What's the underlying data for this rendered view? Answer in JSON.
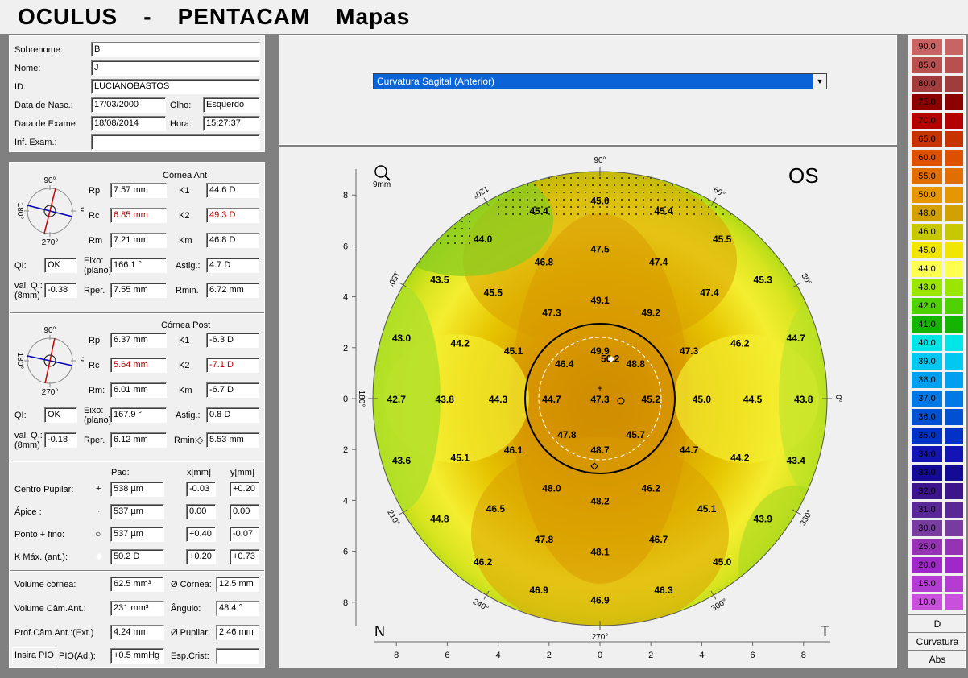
{
  "title": {
    "part1": "OCULUS",
    "dash": "-",
    "part2": "PENTACAM",
    "part3": "Mapas"
  },
  "patient": {
    "sobrenome_label": "Sobrenome:",
    "sobrenome_value": "B",
    "nome_label": "Nome:",
    "nome_value": "J",
    "id_label": "ID:",
    "id_value": "LUCIANOBASTOS",
    "nasc_label": "Data de Nasc.:",
    "nasc_value": "17/03/2000",
    "olho_label": "Olho:",
    "olho_value": "Esquerdo",
    "exame_label": "Data de Exame:",
    "exame_value": "18/08/2014",
    "hora_label": "Hora:",
    "hora_value": "15:27:37",
    "inf_label": "Inf. Exam.:",
    "inf_value": ""
  },
  "cornea_ant": {
    "title": "Córnea Ant",
    "dial": {
      "top": "90°",
      "left": "180°",
      "right": "0°",
      "bottom": "270°"
    },
    "rp_label": "Rp",
    "rp": "7.57 mm",
    "k1_label": "K1",
    "k1": "44.6 D",
    "rc_label": "Rc",
    "rc": "6.85 mm",
    "k2_label": "K2",
    "k2": "49.3 D",
    "rm_label": "Rm",
    "rm": "7.21 mm",
    "km_label": "Km",
    "km": "46.8 D",
    "qi_label": "QI:",
    "qi": "OK",
    "eixo_label": "Eixo:",
    "eixo_sub": "(plano)",
    "eixo": "166.1 °",
    "astig_label": "Astig.:",
    "astig": "4.7 D",
    "valq_label": "val. Q.:",
    "valq_sub": "(8mm)",
    "valq": "-0.38",
    "rper_label": "Rper.",
    "rper": "7.55 mm",
    "rmin_label": "Rmin.",
    "rmin": "6.72 mm"
  },
  "cornea_post": {
    "title": "Córnea Post",
    "dial": {
      "top": "90°",
      "left": "180°",
      "right": "0°",
      "bottom": "270°"
    },
    "rp_label": "Rp",
    "rp": "6.37 mm",
    "k1_label": "K1",
    "k1": "-6.3 D",
    "rc_label": "Rc",
    "rc": "5.64 mm",
    "k2_label": "K2",
    "k2": "-7.1 D",
    "rm_label": "Rm:",
    "rm": "6.01 mm",
    "km_label": "Km",
    "km": "-6.7 D",
    "qi_label": "QI:",
    "qi": "OK",
    "eixo_label": "Eixo:",
    "eixo_sub": "(plano)",
    "eixo": "167.9 °",
    "astig_label": "Astig.:",
    "astig": "0.8 D",
    "valq_label": "val. Q.:",
    "valq_sub": "(8mm)",
    "valq": "-0.18",
    "rper_label": "Rper.",
    "rper": "6.12 mm",
    "rmin_label": "Rmin:",
    "rmin_symbol": "◇",
    "rmin": "5.53 mm"
  },
  "pachy": {
    "col_paq": "Paq:",
    "col_x": "x[mm]",
    "col_y": "y[mm]",
    "rows": [
      {
        "label": "Centro Pupilar:",
        "symbol": "+",
        "paq": "538 µm",
        "x": "-0.03",
        "y": "+0.20"
      },
      {
        "label": "Ápice :",
        "symbol": "·",
        "paq": "537 µm",
        "x": "0.00",
        "y": "0.00"
      },
      {
        "label": "Ponto + fino:",
        "symbol": "○",
        "paq": "537 µm",
        "x": "+0.40",
        "y": "-0.07"
      },
      {
        "label": "K Máx. (ant.):",
        "symbol": "◆",
        "paq": "50.2 D",
        "x": "+0.20",
        "y": "+0.73"
      }
    ]
  },
  "volumes": {
    "vol_cornea_label": "Volume córnea:",
    "vol_cornea": "62.5 mm³",
    "diam_cornea_label": "Ø Córnea:",
    "diam_cornea": "12.5 mm",
    "vol_cam_label": "Volume Câm.Ant.:",
    "vol_cam": "231 mm³",
    "angulo_label": "Ângulo:",
    "angulo": "48.4 °",
    "prof_label": "Prof.Câm.Ant.:(Ext.)",
    "prof": "4.24 mm",
    "pupilar_label": "Ø Pupilar:",
    "pupilar": "2.46 mm",
    "insira_pio": "Insira PIO",
    "pio_label": "PIO(Ad.):",
    "pio": "+0.5 mmHg",
    "esp_label": "Esp.Crist:",
    "esp": ""
  },
  "map": {
    "selector": "Curvatura Sagital (Anterior)",
    "eye": "OS",
    "zoom_label": "9mm",
    "left_label": "N",
    "right_label": "T",
    "axis_ticks": [
      "8",
      "6",
      "4",
      "2",
      "0",
      "2",
      "4",
      "6",
      "8"
    ],
    "angles": [
      "90°",
      "60°",
      "30°",
      "0°",
      "330°",
      "300°",
      "270°",
      "240°",
      "210°",
      "180°",
      "150°",
      "120°"
    ],
    "values": [
      [
        "45.4",
        -2.4,
        7.4
      ],
      [
        "45.0",
        0,
        7.8
      ],
      [
        "45.4",
        2.5,
        7.4
      ],
      [
        "44.0",
        -4.6,
        6.3
      ],
      [
        "45.5",
        4.8,
        6.3
      ],
      [
        "46.8",
        -2.2,
        5.4
      ],
      [
        "47.5",
        0,
        5.9
      ],
      [
        "47.4",
        2.3,
        5.4
      ],
      [
        "43.5",
        -6.3,
        4.7
      ],
      [
        "45.5",
        -4.2,
        4.2
      ],
      [
        "45.3",
        6.4,
        4.7
      ],
      [
        "47.4",
        4.3,
        4.2
      ],
      [
        "49.1",
        0,
        3.9
      ],
      [
        "47.3",
        -1.9,
        3.4
      ],
      [
        "49.2",
        2.0,
        3.4
      ],
      [
        "43.0",
        -7.8,
        2.4
      ],
      [
        "44.2",
        -5.5,
        2.2
      ],
      [
        "45.1",
        -3.4,
        1.9
      ],
      [
        "47.3",
        3.5,
        1.9
      ],
      [
        "46.2",
        5.5,
        2.2
      ],
      [
        "44.7",
        7.7,
        2.4
      ],
      [
        "49.9",
        0,
        1.9
      ],
      [
        "50.2",
        0.4,
        1.6
      ],
      [
        "46.4",
        -1.4,
        1.4
      ],
      [
        "48.8",
        1.4,
        1.4
      ],
      [
        "42.7",
        -8.0,
        0
      ],
      [
        "43.8",
        -6.1,
        0
      ],
      [
        "44.3",
        -4.0,
        0
      ],
      [
        "44.7",
        -1.9,
        0
      ],
      [
        "47.3",
        0,
        0
      ],
      [
        "45.2",
        2.0,
        0
      ],
      [
        "45.0",
        4.0,
        0
      ],
      [
        "44.5",
        6.0,
        0
      ],
      [
        "43.8",
        8.0,
        0
      ],
      [
        "47.8",
        -1.3,
        -1.4
      ],
      [
        "45.7",
        1.4,
        -1.4
      ],
      [
        "48.7",
        0,
        -2.0
      ],
      [
        "43.6",
        -7.8,
        -2.4
      ],
      [
        "45.1",
        -5.5,
        -2.3
      ],
      [
        "46.1",
        -3.4,
        -2.0
      ],
      [
        "44.7",
        3.5,
        -2.0
      ],
      [
        "44.2",
        5.5,
        -2.3
      ],
      [
        "43.4",
        7.7,
        -2.4
      ],
      [
        "48.0",
        -1.9,
        -3.5
      ],
      [
        "46.2",
        2.0,
        -3.5
      ],
      [
        "46.5",
        -4.1,
        -4.3
      ],
      [
        "48.2",
        0,
        -4.0
      ],
      [
        "45.1",
        4.2,
        -4.3
      ],
      [
        "44.8",
        -6.3,
        -4.7
      ],
      [
        "43.9",
        6.4,
        -4.7
      ],
      [
        "47.8",
        -2.2,
        -5.5
      ],
      [
        "46.7",
        2.3,
        -5.5
      ],
      [
        "48.1",
        0,
        -6.0
      ],
      [
        "46.2",
        -4.6,
        -6.4
      ],
      [
        "45.0",
        4.8,
        -6.4
      ],
      [
        "46.9",
        -2.4,
        -7.5
      ],
      [
        "46.3",
        2.5,
        -7.5
      ],
      [
        "46.9",
        0,
        -7.9
      ]
    ]
  },
  "scale": {
    "values": [
      "90.0",
      "85.0",
      "80.0",
      "75.0",
      "70.0",
      "65.0",
      "60.0",
      "55.0",
      "50.0",
      "48.0",
      "46.0",
      "45.0",
      "44.0",
      "43.0",
      "42.0",
      "41.0",
      "40.0",
      "39.0",
      "38.0",
      "37.0",
      "36.0",
      "35.0",
      "34.0",
      "33.0",
      "32.0",
      "31.0",
      "30.0",
      "25.0",
      "20.0",
      "15.0",
      "10.0"
    ],
    "colors": [
      "#c86464",
      "#b85050",
      "#a03c3c",
      "#8c0000",
      "#b40000",
      "#c83200",
      "#dc5000",
      "#e06e00",
      "#e69600",
      "#d2a000",
      "#c8c800",
      "#f0e600",
      "#ffff50",
      "#9ae600",
      "#50d200",
      "#14b400",
      "#00e6e6",
      "#00c8f0",
      "#00a0f0",
      "#0078e6",
      "#0050d2",
      "#0032c8",
      "#1414b4",
      "#140a96",
      "#3c148c",
      "#5a2896",
      "#783ca0",
      "#9632b4",
      "#a028c8",
      "#b43cd2",
      "#c850dc"
    ],
    "unit": "D",
    "type": "Curvatura",
    "mode": "Abs"
  },
  "colors": {
    "accent": "#0a64d8",
    "red_value": "#b00000"
  }
}
